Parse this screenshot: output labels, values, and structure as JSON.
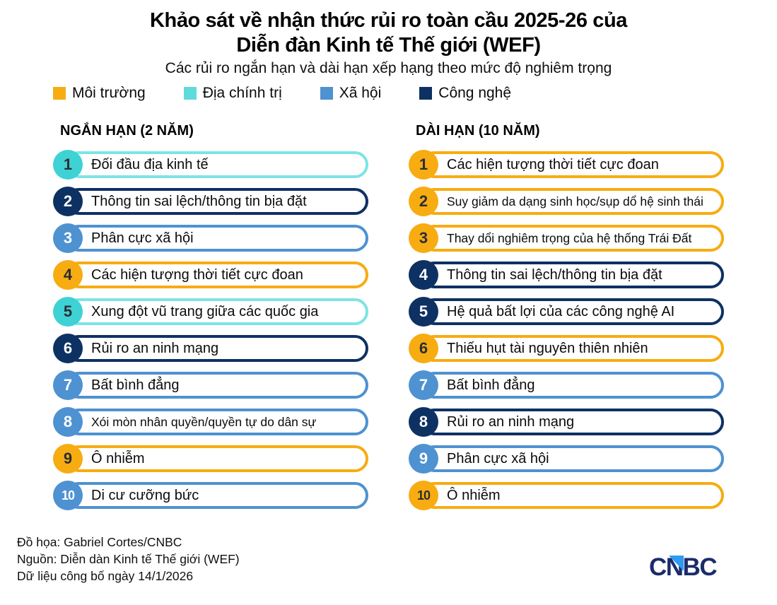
{
  "title": {
    "line1": "Khảo sát về nhận thức rủi ro toàn cầu 2025-26 của",
    "line2": "Diễn đàn Kinh tế Thế giới (WEF)"
  },
  "subtitle": "Các rủi ro ngắn hạn và dài hạn xếp hạng theo mức độ nghiêm trọng",
  "legend": [
    {
      "label": "Môi trường",
      "color": "#F7AC12"
    },
    {
      "label": "Địa chính trị",
      "color": "#5FDBDB"
    },
    {
      "label": "Xã hội",
      "color": "#4E92D1"
    },
    {
      "label": "Công nghệ",
      "color": "#0E3163"
    }
  ],
  "category_styles": {
    "env": {
      "name": "Môi trường",
      "badge": "#F7AC12",
      "border": "#F7AC12",
      "number_color": "#2B2E33"
    },
    "geo": {
      "name": "Địa chính trị",
      "badge": "#3FD2D4",
      "border": "#7DE4E4",
      "number_color": "#2B2E33"
    },
    "soc": {
      "name": "Xã hội",
      "badge": "#4E92D1",
      "border": "#4E92D1",
      "number_color": "#FFFFFF"
    },
    "tech": {
      "name": "Công nghệ",
      "badge": "#0E3163",
      "border": "#0E3163",
      "number_color": "#FFFFFF"
    }
  },
  "columns": [
    {
      "header": "NGẮN HẠN (2 NĂM)",
      "items": [
        {
          "rank": "1",
          "label": "Đối đầu địa kinh tế",
          "category": "geo",
          "small": false
        },
        {
          "rank": "2",
          "label": "Thông tin sai lệch/thông tin bịa đặt",
          "category": "tech",
          "small": false
        },
        {
          "rank": "3",
          "label": "Phân cực xã hội",
          "category": "soc",
          "small": false
        },
        {
          "rank": "4",
          "label": "Các hiện tượng thời tiết cực đoan",
          "category": "env",
          "small": false
        },
        {
          "rank": "5",
          "label": "Xung đột vũ trang giữa các quốc gia",
          "category": "geo",
          "small": false
        },
        {
          "rank": "6",
          "label": "Rủi ro an ninh mạng",
          "category": "tech",
          "small": false
        },
        {
          "rank": "7",
          "label": "Bất bình đẳng",
          "category": "soc",
          "small": false
        },
        {
          "rank": "8",
          "label": "Xói mòn nhân quyền/quyền tự do dân sự",
          "category": "soc",
          "small": true
        },
        {
          "rank": "9",
          "label": "Ô nhiễm",
          "category": "env",
          "small": false
        },
        {
          "rank": "10",
          "label": "Di cư cưỡng bức",
          "category": "soc",
          "small": false
        }
      ]
    },
    {
      "header": "DÀI HẠN (10 NĂM)",
      "items": [
        {
          "rank": "1",
          "label": "Các hiện tượng thời tiết cực đoan",
          "category": "env",
          "small": false
        },
        {
          "rank": "2",
          "label": "Suy giảm da dạng sinh học/sụp dổ hệ sinh thái",
          "category": "env",
          "small": true
        },
        {
          "rank": "3",
          "label": "Thay dổi nghiêm trọng của hệ thống Trái Đất",
          "category": "env",
          "small": true
        },
        {
          "rank": "4",
          "label": "Thông tin sai lệch/thông tin bịa đặt",
          "category": "tech",
          "small": false
        },
        {
          "rank": "5",
          "label": "Hệ quả bất lợi của các công nghệ AI",
          "category": "tech",
          "small": false
        },
        {
          "rank": "6",
          "label": "Thiếu hụt tài nguyên thiên nhiên",
          "category": "env",
          "small": false
        },
        {
          "rank": "7",
          "label": "Bất bình đẳng",
          "category": "soc",
          "small": false
        },
        {
          "rank": "8",
          "label": "Rủi ro an ninh mạng",
          "category": "tech",
          "small": false
        },
        {
          "rank": "9",
          "label": "Phân cực xã hội",
          "category": "soc",
          "small": false
        },
        {
          "rank": "10",
          "label": "Ô nhiễm",
          "category": "env",
          "small": false
        }
      ]
    }
  ],
  "footer": {
    "line1": "Đồ họa: Gabriel Cortes/CNBC",
    "line2": "Nguồn: Diễn dàn Kinh tế Thế giới (WEF)",
    "line3": "Dữ liệu công bố ngày 14/1/2026"
  },
  "logo": {
    "text": "CNBC",
    "color": "#1B2C6B",
    "triangle_color": "#2E9BF0"
  },
  "chart_data": {
    "type": "table",
    "title": "Khảo sát về nhận thức rủi ro toàn cầu 2025-26 của Diễn đàn Kinh tế Thế giới (WEF)",
    "subtitle": "Các rủi ro ngắn hạn và dài hạn xếp hạng theo mức độ nghiêm trọng",
    "legend": [
      "Môi trường",
      "Địa chính trị",
      "Xã hội",
      "Công nghệ"
    ],
    "legend_position": "top-left",
    "columns": [
      "NGẮN HẠN (2 NĂM)",
      "DÀI HẠN (10 NĂM)"
    ],
    "short_term": [
      {
        "rank": 1,
        "risk": "Đối đầu địa kinh tế",
        "category": "Địa chính trị"
      },
      {
        "rank": 2,
        "risk": "Thông tin sai lệch/thông tin bịa đặt",
        "category": "Công nghệ"
      },
      {
        "rank": 3,
        "risk": "Phân cực xã hội",
        "category": "Xã hội"
      },
      {
        "rank": 4,
        "risk": "Các hiện tượng thời tiết cực đoan",
        "category": "Môi trường"
      },
      {
        "rank": 5,
        "risk": "Xung đột vũ trang giữa các quốc gia",
        "category": "Địa chính trị"
      },
      {
        "rank": 6,
        "risk": "Rủi ro an ninh mạng",
        "category": "Công nghệ"
      },
      {
        "rank": 7,
        "risk": "Bất bình đẳng",
        "category": "Xã hội"
      },
      {
        "rank": 8,
        "risk": "Xói mòn nhân quyền/quyền tự do dân sự",
        "category": "Xã hội"
      },
      {
        "rank": 9,
        "risk": "Ô nhiễm",
        "category": "Môi trường"
      },
      {
        "rank": 10,
        "risk": "Di cư cưỡng bức",
        "category": "Xã hội"
      }
    ],
    "long_term": [
      {
        "rank": 1,
        "risk": "Các hiện tượng thời tiết cực đoan",
        "category": "Môi trường"
      },
      {
        "rank": 2,
        "risk": "Suy giảm da dạng sinh học/sụp dổ hệ sinh thái",
        "category": "Môi trường"
      },
      {
        "rank": 3,
        "risk": "Thay dổi nghiêm trọng của hệ thống Trái Đất",
        "category": "Môi trường"
      },
      {
        "rank": 4,
        "risk": "Thông tin sai lệch/thông tin bịa đặt",
        "category": "Công nghệ"
      },
      {
        "rank": 5,
        "risk": "Hệ quả bất lợi của các công nghệ AI",
        "category": "Công nghệ"
      },
      {
        "rank": 6,
        "risk": "Thiếu hụt tài nguyên thiên nhiên",
        "category": "Môi trường"
      },
      {
        "rank": 7,
        "risk": "Bất bình đẳng",
        "category": "Xã hội"
      },
      {
        "rank": 8,
        "risk": "Rủi ro an ninh mạng",
        "category": "Công nghệ"
      },
      {
        "rank": 9,
        "risk": "Phân cực xã hội",
        "category": "Xã hội"
      },
      {
        "rank": 10,
        "risk": "Ô nhiễm",
        "category": "Môi trường"
      }
    ]
  }
}
